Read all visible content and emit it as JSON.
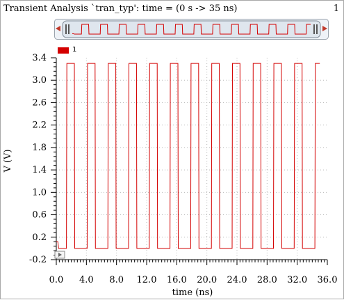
{
  "window": {
    "title": "Transient Analysis `tran_typ': time = (0 s -> 35 ns)",
    "page_number": "1"
  },
  "overview": {
    "left_arrow_icon": "arrow-left-icon",
    "right_arrow_icon": "arrow-right-icon",
    "handle_icon": "grip-handle-icon"
  },
  "legend": {
    "label": "1",
    "color": "#d40000"
  },
  "colors": {
    "trace": "#d40000",
    "axis": "#000000",
    "grid": "#b8b8b8",
    "overview_bg": "#e8eef5"
  },
  "chart_data": {
    "type": "line",
    "title": "Transient Analysis `tran_typ': time = (0 s -> 35 ns)",
    "xlabel": "time (ns)",
    "ylabel": "V (V)",
    "xlim": [
      0,
      36
    ],
    "ylim": [
      -0.2,
      3.4
    ],
    "x_ticks": [
      "0.0",
      "4.0",
      "8.0",
      "12.0",
      "16.0",
      "20.0",
      "24.0",
      "28.0",
      "32.0",
      "36.0"
    ],
    "y_ticks": [
      "-0.2",
      "0.2",
      "0.6",
      "1.0",
      "1.4",
      "1.8",
      "2.2",
      "2.6",
      "3.0",
      "3.4"
    ],
    "grid": true,
    "legend_position": "top-left",
    "series": [
      {
        "name": "1",
        "signal": "square",
        "period_ns": 2.75,
        "first_rise_ns": 1.35,
        "high_duration_ns": 1.05,
        "high_v": 3.3,
        "low_v": 0.0,
        "start_v": 0.12,
        "end_ns": 35.0
      }
    ]
  }
}
